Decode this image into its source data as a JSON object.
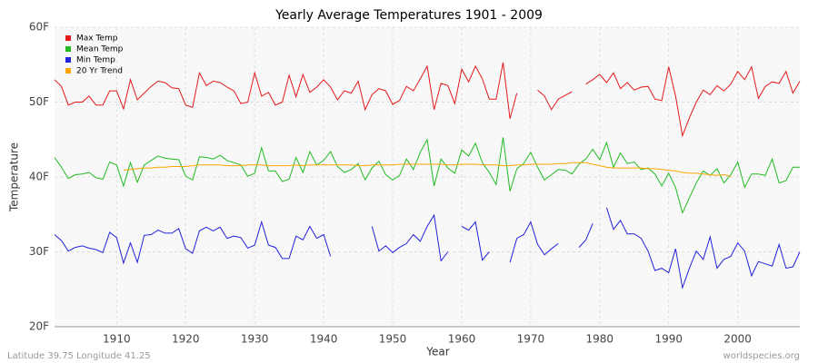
{
  "chart_data": {
    "type": "line",
    "title": "Yearly Average Temperatures 1901 - 2009",
    "xlabel": "Year",
    "ylabel": "Temperature",
    "footer_left": "Latitude 39.75 Longitude 41.25",
    "footer_right": "worldspecies.org",
    "x": [
      1901,
      1902,
      1903,
      1904,
      1905,
      1906,
      1907,
      1908,
      1909,
      1910,
      1911,
      1912,
      1913,
      1914,
      1915,
      1916,
      1917,
      1918,
      1919,
      1920,
      1921,
      1922,
      1923,
      1924,
      1925,
      1926,
      1927,
      1928,
      1929,
      1930,
      1931,
      1932,
      1933,
      1934,
      1935,
      1936,
      1937,
      1938,
      1939,
      1940,
      1941,
      1942,
      1943,
      1944,
      1945,
      1946,
      1947,
      1948,
      1949,
      1950,
      1951,
      1952,
      1953,
      1954,
      1955,
      1956,
      1957,
      1958,
      1959,
      1960,
      1961,
      1962,
      1963,
      1964,
      1965,
      1966,
      1967,
      1968,
      1969,
      1970,
      1971,
      1972,
      1973,
      1974,
      1975,
      1976,
      1977,
      1978,
      1979,
      1980,
      1981,
      1982,
      1983,
      1984,
      1985,
      1986,
      1987,
      1988,
      1989,
      1990,
      1991,
      1992,
      1993,
      1994,
      1995,
      1996,
      1997,
      1998,
      1999,
      2000,
      2001,
      2002,
      2003,
      2004,
      2005,
      2006,
      2007,
      2008,
      2009
    ],
    "series": [
      {
        "name": "Max Temp",
        "color": "#e31a1c",
        "values": [
          53.0,
          52.1,
          49.6,
          50.0,
          50.0,
          50.8,
          49.6,
          49.6,
          51.5,
          51.5,
          49.1,
          53.0,
          50.3,
          51.2,
          52.1,
          52.8,
          52.6,
          51.9,
          51.8,
          49.6,
          49.3,
          53.9,
          52.2,
          52.8,
          52.6,
          52.0,
          51.5,
          49.8,
          50.0,
          53.9,
          50.8,
          51.3,
          49.6,
          50.0,
          53.6,
          50.7,
          53.7,
          51.3,
          52.0,
          53.0,
          52.0,
          50.3,
          51.5,
          51.2,
          52.8,
          49.0,
          51.0,
          51.8,
          51.5,
          49.7,
          50.2,
          52.1,
          51.5,
          53.1,
          54.8,
          49.0,
          52.5,
          52.2,
          49.8,
          54.4,
          52.7,
          54.8,
          53.1,
          50.4,
          50.4,
          55.3,
          47.8,
          51.2,
          null,
          null,
          51.6,
          50.8,
          49.0,
          50.4,
          50.9,
          51.4,
          null,
          52.4,
          53.0,
          53.7,
          52.6,
          53.9,
          51.8,
          52.6,
          51.6,
          52.0,
          52.1,
          50.4,
          50.2,
          54.7,
          50.8,
          45.5,
          47.9,
          50.0,
          51.6,
          51.0,
          52.2,
          51.5,
          52.4,
          54.1,
          53.0,
          54.7,
          50.5,
          52.1,
          52.7,
          52.5,
          54.1,
          51.2,
          52.8
        ]
      },
      {
        "name": "Mean Temp",
        "color": "#22bb22",
        "values": [
          42.6,
          41.3,
          39.8,
          40.3,
          40.4,
          40.6,
          39.9,
          39.7,
          42.0,
          41.6,
          38.8,
          41.9,
          39.3,
          41.6,
          42.2,
          42.8,
          42.5,
          42.4,
          42.3,
          40.1,
          39.6,
          42.7,
          42.6,
          42.4,
          42.9,
          42.2,
          41.9,
          41.6,
          40.1,
          40.5,
          43.9,
          40.8,
          40.8,
          39.4,
          39.7,
          42.6,
          40.6,
          43.4,
          41.6,
          42.2,
          43.4,
          41.4,
          40.6,
          41.0,
          41.8,
          39.6,
          41.2,
          42.1,
          40.3,
          39.6,
          40.2,
          42.4,
          41.0,
          43.3,
          45.0,
          38.8,
          42.4,
          41.2,
          40.5,
          43.6,
          42.8,
          44.5,
          41.9,
          40.6,
          39.0,
          45.3,
          38.1,
          41.1,
          41.8,
          43.3,
          41.3,
          39.6,
          40.3,
          41.0,
          40.9,
          40.4,
          41.7,
          42.4,
          43.7,
          42.3,
          44.6,
          41.3,
          43.2,
          41.8,
          42.0,
          41.0,
          41.2,
          40.4,
          38.8,
          40.5,
          38.6,
          35.2,
          37.2,
          39.2,
          40.8,
          40.2,
          41.1,
          39.2,
          40.3,
          42.0,
          38.6,
          40.4,
          40.4,
          40.2,
          42.4,
          39.2,
          39.5,
          41.3,
          41.3
        ]
      },
      {
        "name": "Min Temp",
        "color": "#2222dd",
        "values": [
          32.3,
          31.5,
          30.1,
          30.6,
          30.8,
          30.5,
          30.3,
          29.9,
          32.6,
          31.9,
          28.5,
          31.2,
          28.6,
          32.2,
          32.3,
          32.9,
          32.5,
          32.5,
          33.1,
          30.4,
          29.8,
          32.8,
          33.3,
          32.8,
          33.3,
          31.8,
          32.1,
          31.9,
          30.5,
          30.9,
          34.0,
          30.9,
          30.6,
          29.1,
          29.1,
          32.1,
          31.6,
          33.4,
          31.8,
          32.3,
          29.4,
          null,
          null,
          null,
          null,
          null,
          33.4,
          30.1,
          30.8,
          29.9,
          30.6,
          31.1,
          32.3,
          31.4,
          33.4,
          34.9,
          28.8,
          30.0,
          null,
          33.4,
          32.9,
          34.0,
          28.9,
          30.0,
          null,
          null,
          28.6,
          31.8,
          32.3,
          34.0,
          31.0,
          29.6,
          30.4,
          31.1,
          null,
          null,
          30.6,
          31.6,
          33.8,
          null,
          35.9,
          33.0,
          34.2,
          32.4,
          32.4,
          31.8,
          30.1,
          27.5,
          27.8,
          27.2,
          30.4,
          25.2,
          27.8,
          30.1,
          29.0,
          32.0,
          27.8,
          29.0,
          29.4,
          31.2,
          30.1,
          26.8,
          28.7,
          28.4,
          28.1,
          31.0,
          27.8,
          28.0,
          30.0
        ]
      },
      {
        "name": "20 Yr Trend",
        "color": "#ffa500",
        "values": [
          null,
          null,
          null,
          null,
          null,
          null,
          null,
          null,
          null,
          null,
          40.9,
          41.0,
          41.1,
          41.2,
          41.2,
          41.3,
          41.3,
          41.4,
          41.4,
          41.4,
          41.5,
          41.6,
          41.6,
          41.6,
          41.6,
          41.5,
          41.5,
          41.5,
          41.6,
          41.6,
          41.6,
          41.5,
          41.5,
          41.5,
          41.5,
          41.6,
          41.5,
          41.6,
          41.6,
          41.6,
          41.6,
          41.6,
          41.6,
          41.6,
          41.5,
          41.5,
          41.6,
          41.6,
          41.6,
          41.6,
          41.7,
          41.7,
          41.7,
          41.7,
          41.7,
          41.7,
          41.7,
          41.6,
          41.6,
          41.7,
          41.7,
          41.7,
          41.6,
          41.6,
          41.6,
          41.5,
          41.5,
          41.6,
          41.6,
          41.7,
          41.7,
          41.7,
          41.7,
          41.8,
          41.8,
          41.9,
          41.9,
          41.9,
          41.7,
          41.5,
          41.3,
          41.2,
          41.2,
          41.2,
          41.2,
          41.2,
          41.1,
          41.1,
          41.0,
          40.9,
          40.8,
          40.6,
          40.5,
          40.5,
          40.4,
          40.3,
          40.2,
          40.3,
          40.1,
          null,
          null,
          null,
          null,
          null,
          null,
          null,
          null,
          null,
          null
        ]
      }
    ],
    "xlim": [
      1901,
      2009
    ],
    "xticks": [
      1910,
      1920,
      1930,
      1940,
      1950,
      1960,
      1970,
      1980,
      1990,
      2000
    ],
    "ylim": [
      20,
      60
    ],
    "yticks": [
      {
        "value": 20,
        "label": "20F"
      },
      {
        "value": 30,
        "label": "30F"
      },
      {
        "value": 40,
        "label": "40F"
      },
      {
        "value": 50,
        "label": "50F"
      },
      {
        "value": 60,
        "label": "60F"
      }
    ],
    "grid": true,
    "legend": "upper left"
  }
}
